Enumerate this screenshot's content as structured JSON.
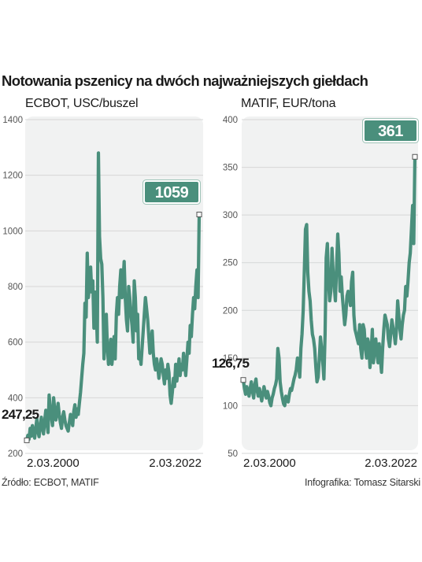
{
  "title": "Notowania pszenicy na dwóch najważniejszych giełdach",
  "source": "Źródło: ECBOT, MATIF",
  "credit": "Infografika: Tomasz Sitarski",
  "colors": {
    "line": "#4a8f7c",
    "badge": "#4a8f7c",
    "panel": "#f1f2f2",
    "grid": "#d6d7d7"
  },
  "chart_data": [
    {
      "type": "line",
      "title": "ECBOT, USC/buszel",
      "ylim": [
        200,
        1400
      ],
      "yticks": [
        200,
        400,
        600,
        800,
        1000,
        1200,
        1400
      ],
      "ytick_labels": [
        "200",
        "400",
        "600",
        "800",
        "1000",
        "1200",
        "1400"
      ],
      "xtick_labels": [
        "2.03.2000",
        "2.03.2022"
      ],
      "start_value_label": "247,25",
      "end_value_label": "1059",
      "grid": true,
      "series": [
        {
          "values": [
            247,
            265,
            250,
            290,
            262,
            300,
            275,
            255,
            290,
            325,
            280,
            260,
            300,
            330,
            290,
            270,
            320,
            355,
            310,
            275,
            410,
            360,
            330,
            300,
            400,
            355,
            320,
            345,
            380,
            340,
            310,
            290,
            330,
            350,
            320,
            300,
            290,
            280,
            310,
            340,
            325,
            300,
            350,
            375,
            330,
            360,
            340,
            380,
            420,
            470,
            520,
            560,
            740,
            690,
            920,
            760,
            800,
            870,
            780,
            820,
            650,
            780,
            720,
            600,
            1280,
            980,
            900,
            880,
            760,
            540,
            620,
            700,
            580,
            520,
            560,
            610,
            520,
            560,
            620,
            540,
            700,
            760,
            700,
            800,
            860,
            760,
            820,
            890,
            760,
            680,
            640,
            800,
            760,
            700,
            660,
            600,
            820,
            760,
            640,
            700,
            540,
            560,
            520,
            580,
            640,
            700,
            760,
            720,
            680,
            620,
            560,
            600,
            640,
            560,
            520,
            500,
            540,
            510,
            470,
            500,
            540,
            520,
            480,
            450,
            500,
            470,
            520,
            490,
            410,
            380,
            420,
            470,
            440,
            520,
            460,
            500,
            540,
            480,
            520,
            500,
            560,
            520,
            480,
            540,
            600,
            560,
            660,
            620,
            700,
            760,
            720,
            800,
            860,
            760,
            1059
          ]
        }
      ]
    },
    {
      "type": "line",
      "title": "MATIF, EUR/tona",
      "ylim": [
        50,
        400
      ],
      "yticks": [
        50,
        100,
        150,
        200,
        250,
        300,
        350,
        400
      ],
      "ytick_labels": [
        "50",
        "100",
        "150",
        "200",
        "250",
        "300",
        "350",
        "400"
      ],
      "xtick_labels": [
        "2.03.2000",
        "2.03.2022"
      ],
      "start_value_label": "126,75",
      "end_value_label": "361",
      "grid": true,
      "series": [
        {
          "values": [
            127,
            118,
            112,
            120,
            116,
            110,
            118,
            125,
            115,
            108,
            122,
            128,
            116,
            110,
            118,
            112,
            105,
            112,
            120,
            114,
            108,
            115,
            110,
            103,
            100,
            108,
            112,
            118,
            122,
            128,
            160,
            150,
            125,
            115,
            108,
            102,
            100,
            110,
            108,
            104,
            112,
            118,
            116,
            122,
            128,
            132,
            138,
            150,
            145,
            130,
            160,
            175,
            200,
            240,
            285,
            290,
            240,
            220,
            210,
            190,
            175,
            170,
            160,
            140,
            125,
            130,
            150,
            172,
            160,
            145,
            128,
            175,
            255,
            270,
            230,
            210,
            220,
            265,
            240,
            225,
            210,
            245,
            280,
            260,
            220,
            235,
            215,
            200,
            185,
            195,
            215,
            220,
            215,
            205,
            230,
            240,
            195,
            180,
            175,
            170,
            165,
            185,
            160,
            150,
            185,
            180,
            160,
            150,
            170,
            165,
            140,
            155,
            180,
            145,
            160,
            170,
            155,
            145,
            165,
            150,
            135,
            160,
            180,
            195,
            190,
            185,
            170,
            162,
            175,
            190,
            182,
            175,
            165,
            180,
            210,
            195,
            180,
            170,
            185,
            195,
            200,
            225,
            215,
            230,
            250,
            260,
            285,
            310,
            270,
            361
          ]
        }
      ]
    }
  ]
}
